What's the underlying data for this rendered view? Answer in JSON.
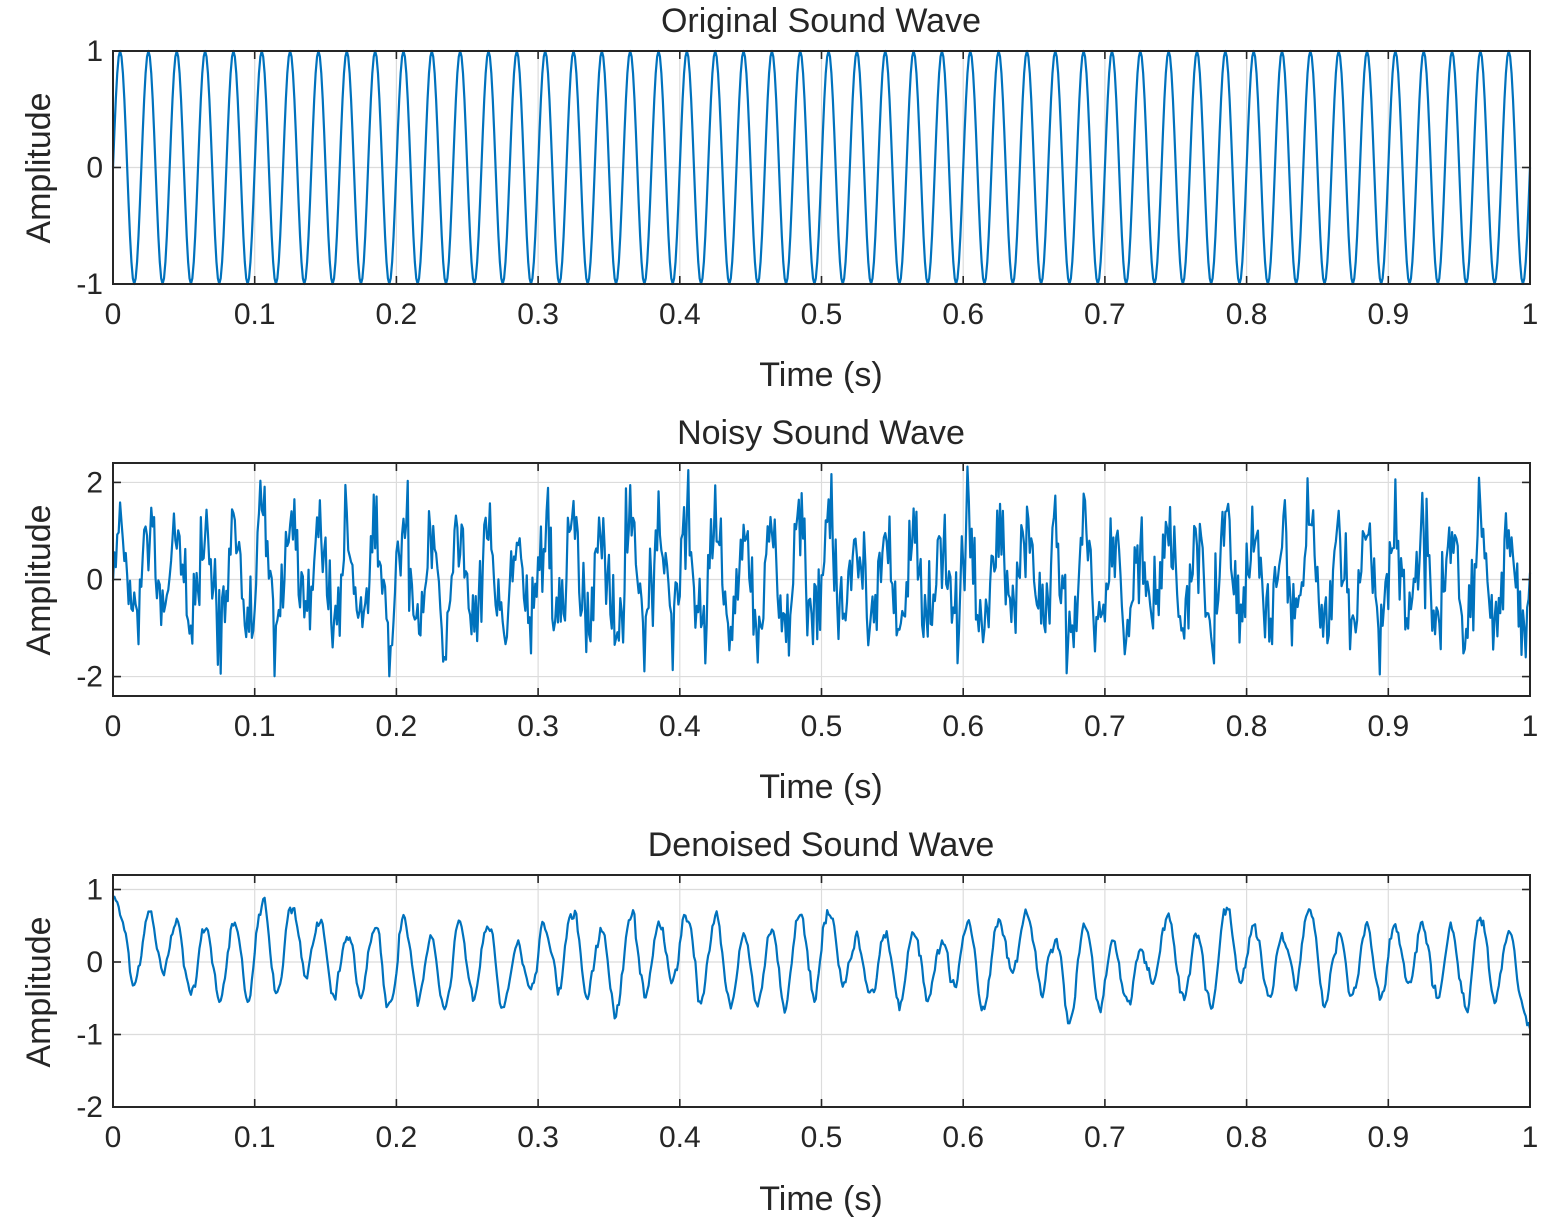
{
  "colors": {
    "wave": "#0072BD",
    "grid": "#dcdcdc",
    "axis": "#262626"
  },
  "chart_data": [
    {
      "type": "line",
      "title": "Original Sound Wave",
      "xlabel": "Time (s)",
      "ylabel": "Amplitude",
      "xlim": [
        0,
        1
      ],
      "ylim": [
        -1,
        1
      ],
      "xticks": [
        0,
        0.1,
        0.2,
        0.3,
        0.4,
        0.5,
        0.6,
        0.7,
        0.8,
        0.9,
        1
      ],
      "xticklabels": [
        "0",
        "0.1",
        "0.2",
        "0.3",
        "0.4",
        "0.5",
        "0.6",
        "0.7",
        "0.8",
        "0.9",
        "1"
      ],
      "yticks": [
        -1,
        0,
        1
      ],
      "yticklabels": [
        "-1",
        "0",
        "1"
      ],
      "grid": true,
      "series": [
        {
          "frequency_hz": 50,
          "amplitude": 1,
          "noise_std": 0,
          "smoothing": 0
        }
      ]
    },
    {
      "type": "line",
      "title": "Noisy Sound Wave",
      "xlabel": "Time (s)",
      "ylabel": "Amplitude",
      "xlim": [
        0,
        1
      ],
      "ylim": [
        -2.4,
        2.4
      ],
      "xticks": [
        0,
        0.1,
        0.2,
        0.3,
        0.4,
        0.5,
        0.6,
        0.7,
        0.8,
        0.9,
        1
      ],
      "xticklabels": [
        "0",
        "0.1",
        "0.2",
        "0.3",
        "0.4",
        "0.5",
        "0.6",
        "0.7",
        "0.8",
        "0.9",
        "1"
      ],
      "yticks": [
        -2,
        0,
        2
      ],
      "yticklabels": [
        "-2",
        "0",
        "2"
      ],
      "grid": true,
      "series": [
        {
          "frequency_hz": 50,
          "amplitude": 1,
          "noise_std": 0.5,
          "smoothing": 0
        }
      ]
    },
    {
      "type": "line",
      "title": "Denoised Sound Wave",
      "xlabel": "Time (s)",
      "ylabel": "Amplitude",
      "xlim": [
        0,
        1
      ],
      "ylim": [
        -2,
        1.2
      ],
      "xticks": [
        0,
        0.1,
        0.2,
        0.3,
        0.4,
        0.5,
        0.6,
        0.7,
        0.8,
        0.9,
        1
      ],
      "xticklabels": [
        "0",
        "0.1",
        "0.2",
        "0.3",
        "0.4",
        "0.5",
        "0.6",
        "0.7",
        "0.8",
        "0.9",
        "1"
      ],
      "yticks": [
        -2,
        -1,
        0,
        1
      ],
      "yticklabels": [
        "-2",
        "-1",
        "0",
        "1"
      ],
      "grid": true,
      "series": [
        {
          "frequency_hz": 50,
          "amplitude": 1,
          "noise_std": 0.5,
          "smoothing": 6
        }
      ]
    }
  ]
}
